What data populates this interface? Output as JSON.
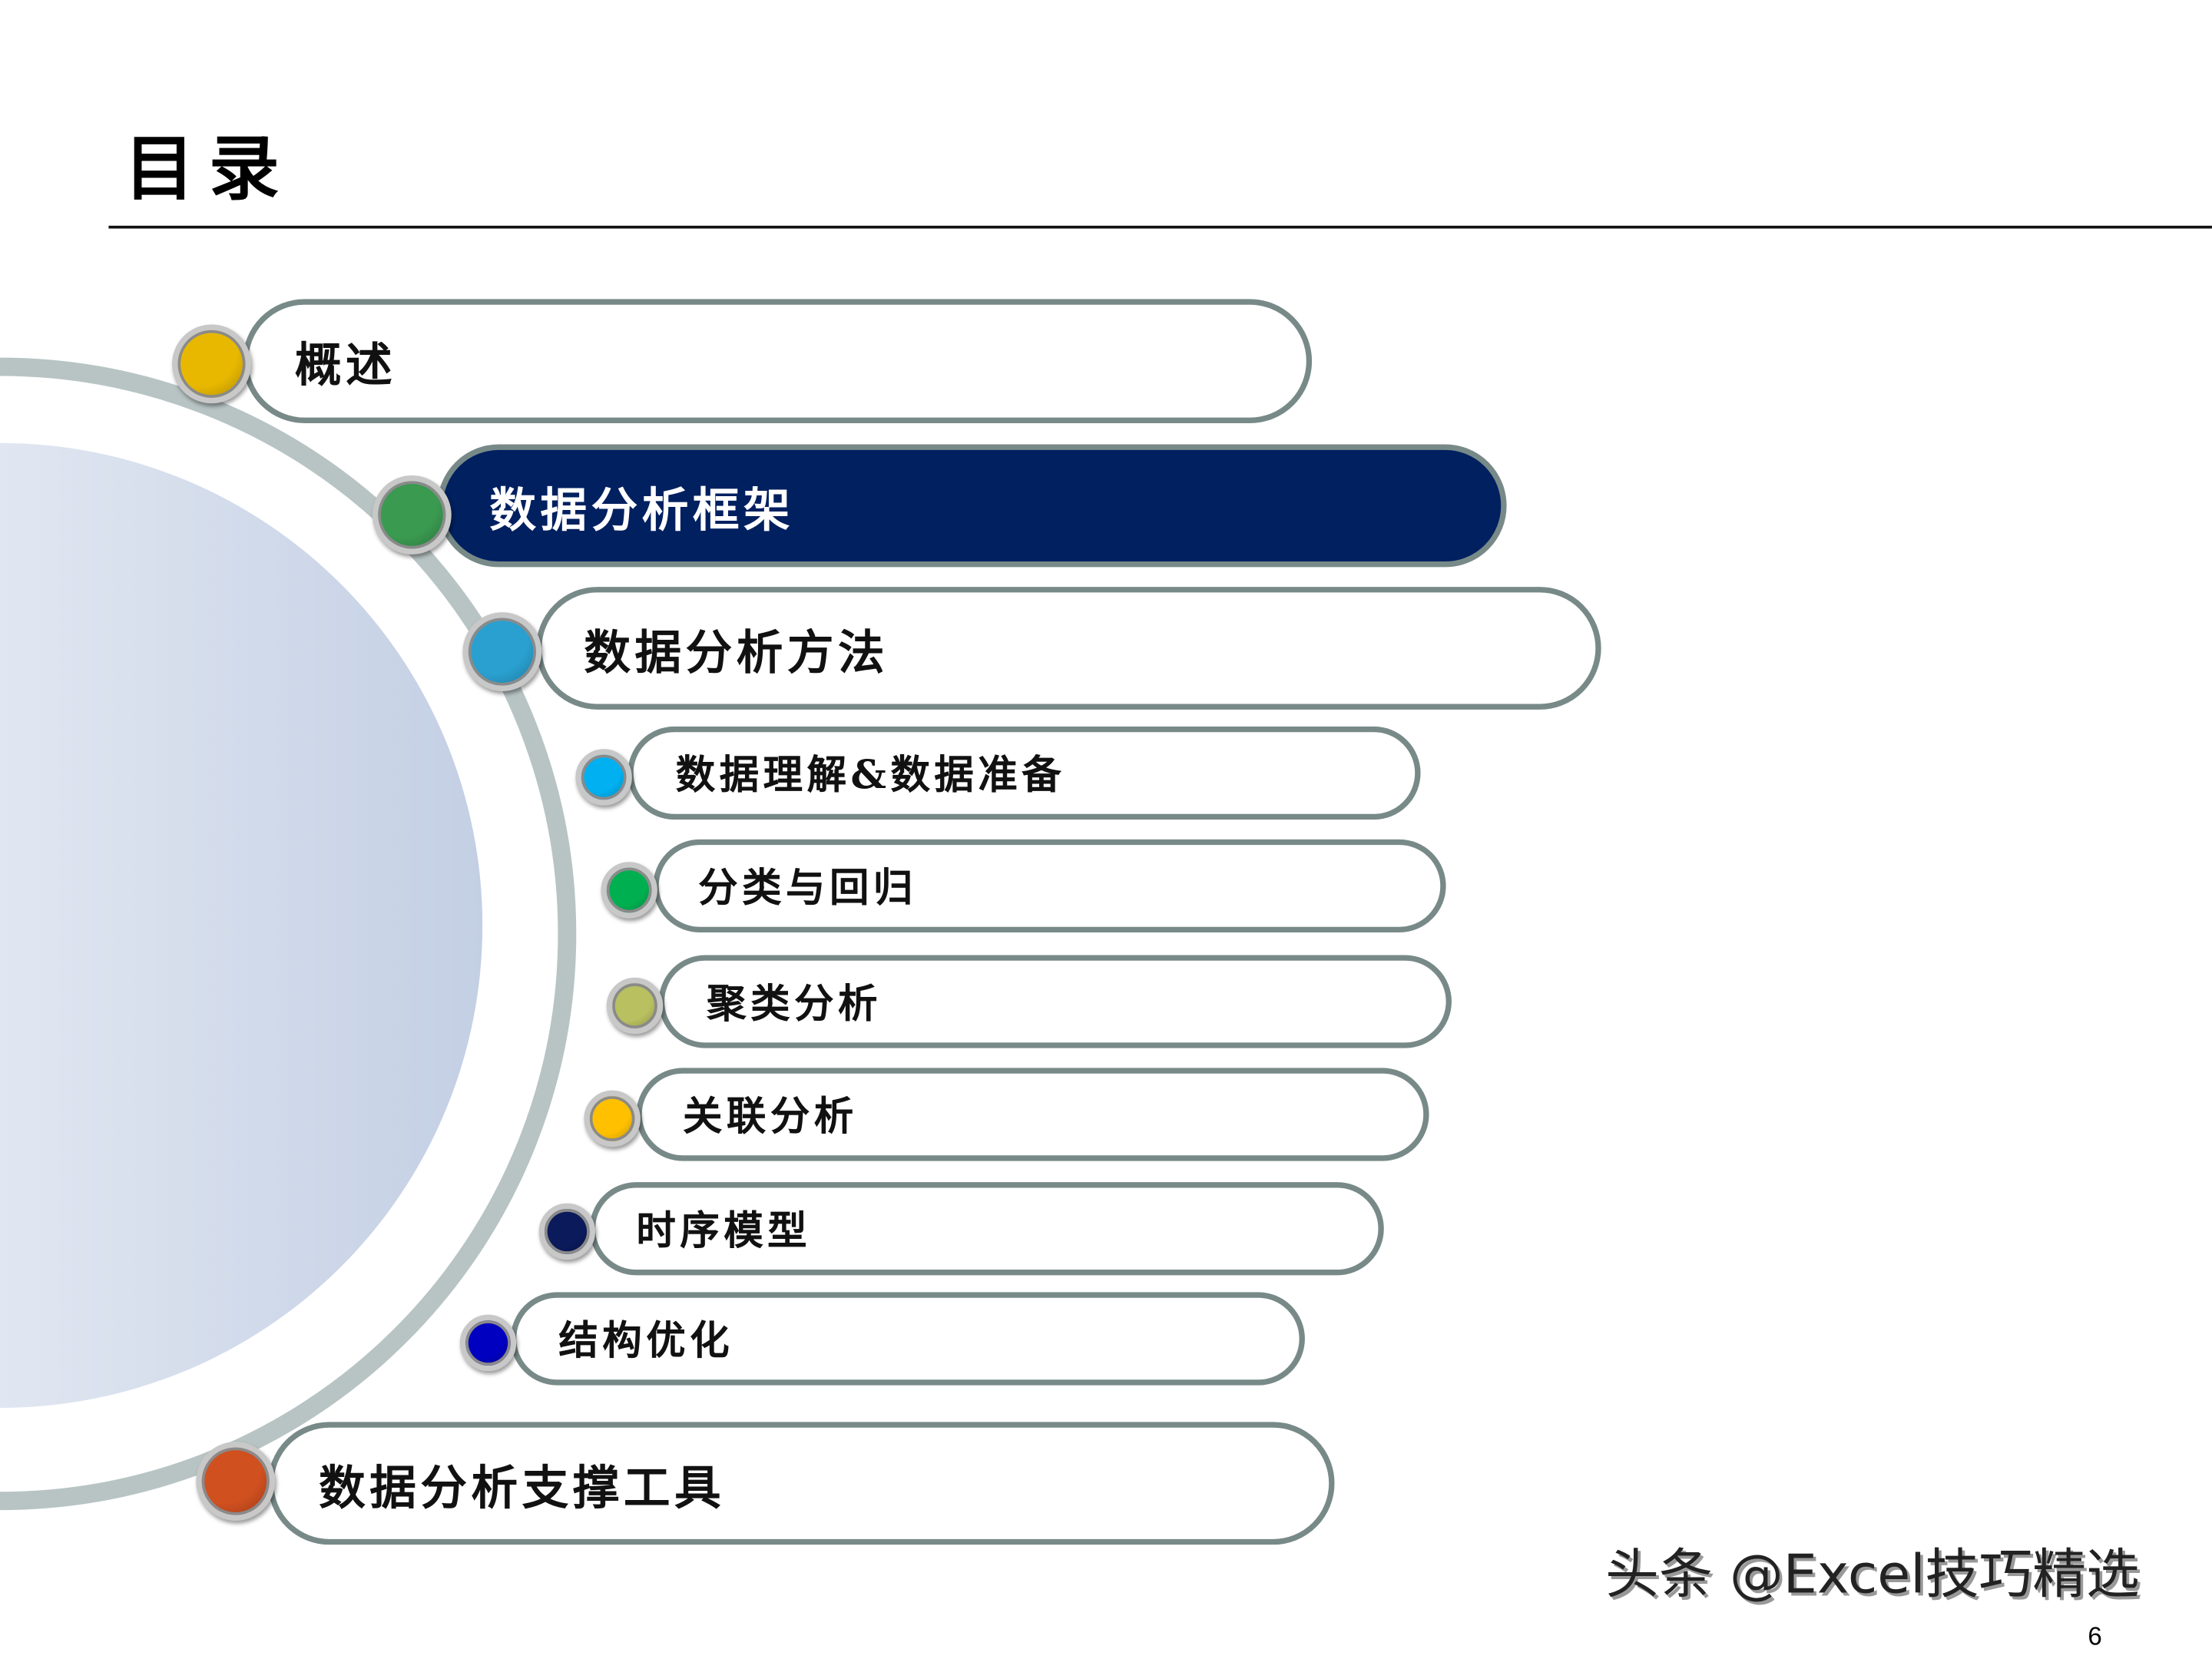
{
  "title": "目录",
  "items": [
    {
      "label": "概述",
      "color": "#e8b800",
      "level": 1,
      "active": false
    },
    {
      "label": "数据分析框架",
      "color": "#3a9a50",
      "level": 1,
      "active": true
    },
    {
      "label": "数据分析方法",
      "color": "#2aa0d0",
      "level": 1,
      "active": false
    },
    {
      "label": "数据理解&数据准备",
      "color": "#00b0f0",
      "level": 2,
      "active": false
    },
    {
      "label": "分类与回归",
      "color": "#00b050",
      "level": 2,
      "active": false
    },
    {
      "label": "聚类分析",
      "color": "#b8c060",
      "level": 2,
      "active": false
    },
    {
      "label": "关联分析",
      "color": "#ffc000",
      "level": 2,
      "active": false
    },
    {
      "label": "时序模型",
      "color": "#0a1a5a",
      "level": 2,
      "active": false
    },
    {
      "label": "结构优化",
      "color": "#0000c0",
      "level": 2,
      "active": false
    },
    {
      "label": "数据分析支撑工具",
      "color": "#d05020",
      "level": 1,
      "active": false
    }
  ],
  "colors": {
    "active_fill": "#002060",
    "pill_border": "#788a88",
    "arc": "#b8c4c4"
  },
  "watermark": "头条 @Excel技巧精选",
  "page_number": "6"
}
